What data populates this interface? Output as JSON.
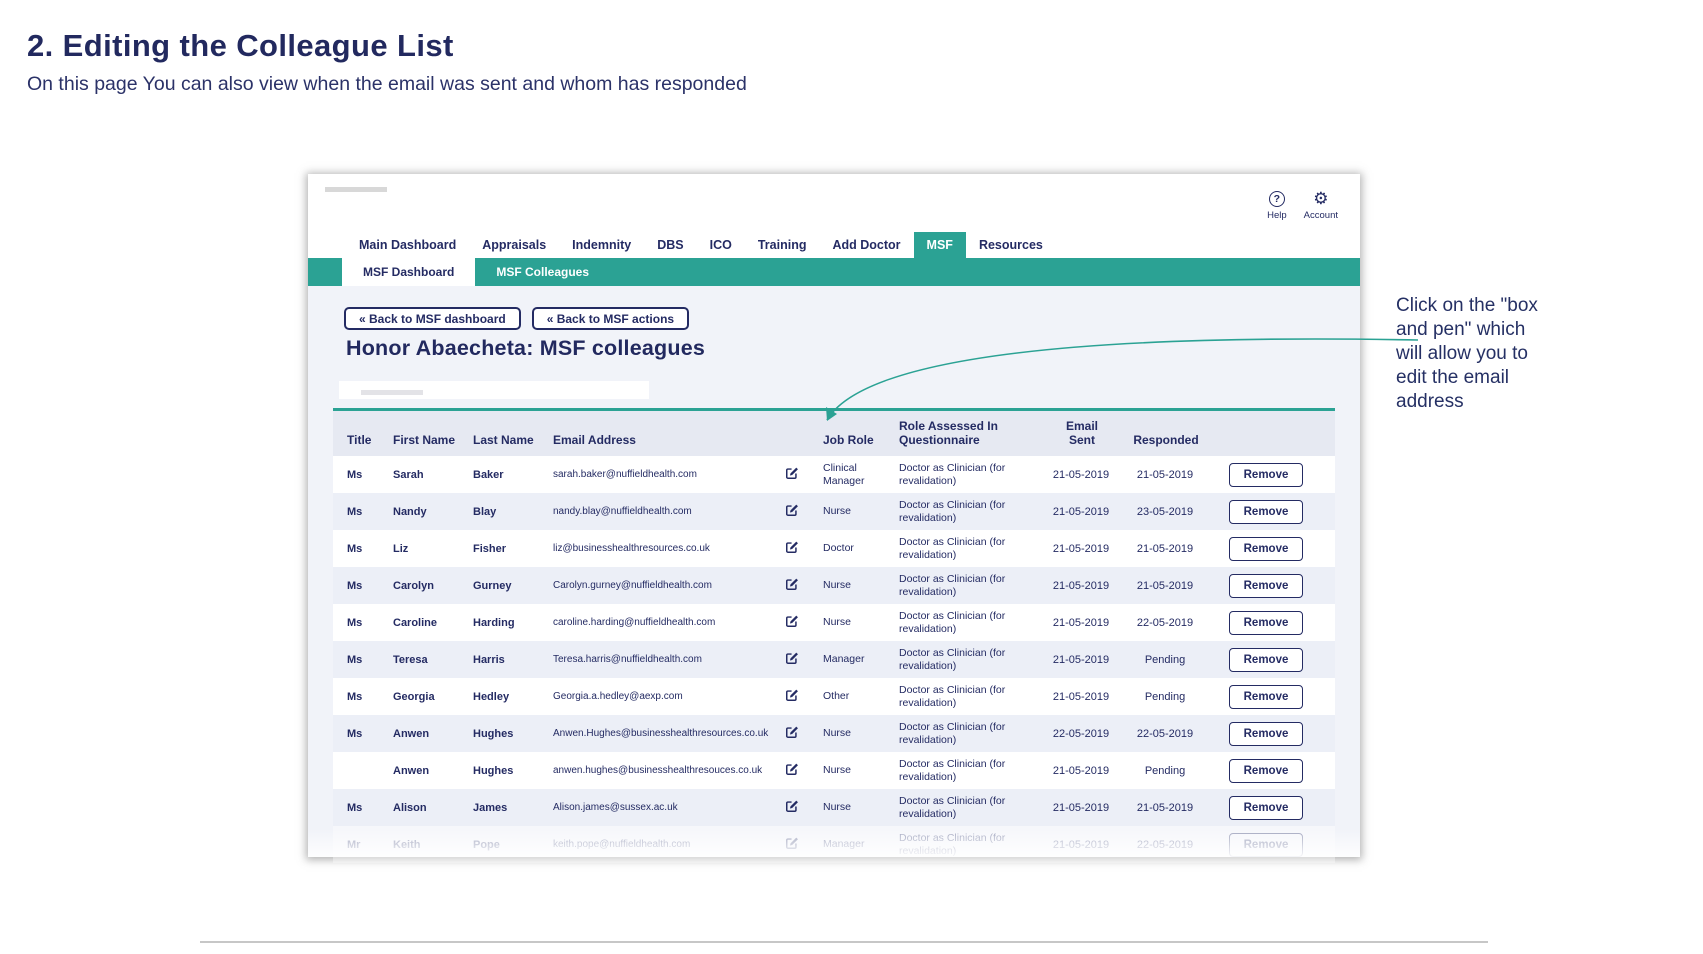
{
  "page": {
    "title": "2. Editing the Colleague List",
    "subtitle": "On this page You can also view when the email was sent and whom has responded"
  },
  "annotation": {
    "text": "Click on the \"box and pen\" which will allow you to edit the email address",
    "arrow_color": "#2ba294"
  },
  "colors": {
    "teal": "#2ba294",
    "navy": "#242b63",
    "stripe": "#eceff7",
    "header_bg": "#e6e9f2"
  },
  "app": {
    "utility": {
      "help_label": "Help",
      "help_icon_glyph": "?",
      "account_label": "Account",
      "account_icon_glyph": "⚙"
    },
    "nav_tabs": [
      {
        "label": "Main Dashboard",
        "active": false
      },
      {
        "label": "Appraisals",
        "active": false
      },
      {
        "label": "Indemnity",
        "active": false
      },
      {
        "label": "DBS",
        "active": false
      },
      {
        "label": "ICO",
        "active": false
      },
      {
        "label": "Training",
        "active": false
      },
      {
        "label": "Add Doctor",
        "active": false
      },
      {
        "label": "MSF",
        "active": true
      },
      {
        "label": "Resources",
        "active": false
      }
    ],
    "subnav_tabs": [
      {
        "label": "MSF Dashboard",
        "active": true
      },
      {
        "label": "MSF Colleagues",
        "active": false
      }
    ],
    "back_buttons": [
      {
        "label": "« Back to MSF dashboard"
      },
      {
        "label": "« Back to MSF actions"
      }
    ],
    "heading": "Honor Abaecheta: MSF colleagues",
    "table": {
      "headers": [
        {
          "label": "Title",
          "align": "left"
        },
        {
          "label": "First Name",
          "align": "left"
        },
        {
          "label": "Last Name",
          "align": "left"
        },
        {
          "label": "Email Address",
          "align": "left"
        },
        {
          "label": "",
          "align": "left"
        },
        {
          "label": "Job Role",
          "align": "left"
        },
        {
          "label": "Role Assessed In\nQuestionnaire",
          "align": "left"
        },
        {
          "label": "Email\nSent",
          "align": "center"
        },
        {
          "label": "Responded",
          "align": "center"
        },
        {
          "label": "",
          "align": "center"
        }
      ],
      "edit_icon": "edit-pen-square-icon",
      "remove_label": "Remove",
      "rows": [
        {
          "title": "Ms",
          "first": "Sarah",
          "last": "Baker",
          "email": "sarah.baker@nuffieldhealth.com",
          "job_role": "Clinical Manager",
          "role_assessed": "Doctor as Clinician (for revalidation)",
          "email_sent": "21-05-2019",
          "responded": "21-05-2019",
          "faded": false
        },
        {
          "title": "Ms",
          "first": "Nandy",
          "last": "Blay",
          "email": "nandy.blay@nuffieldhealth.com",
          "job_role": "Nurse",
          "role_assessed": "Doctor as Clinician (for revalidation)",
          "email_sent": "21-05-2019",
          "responded": "23-05-2019",
          "faded": false
        },
        {
          "title": "Ms",
          "first": "Liz",
          "last": "Fisher",
          "email": "liz@businesshealthresources.co.uk",
          "job_role": "Doctor",
          "role_assessed": "Doctor as Clinician (for revalidation)",
          "email_sent": "21-05-2019",
          "responded": "21-05-2019",
          "faded": false
        },
        {
          "title": "Ms",
          "first": "Carolyn",
          "last": "Gurney",
          "email": "Carolyn.gurney@nuffieldhealth.com",
          "job_role": "Nurse",
          "role_assessed": "Doctor as Clinician (for revalidation)",
          "email_sent": "21-05-2019",
          "responded": "21-05-2019",
          "faded": false
        },
        {
          "title": "Ms",
          "first": "Caroline",
          "last": "Harding",
          "email": "caroline.harding@nuffieldhealth.com",
          "job_role": "Nurse",
          "role_assessed": "Doctor as Clinician (for revalidation)",
          "email_sent": "21-05-2019",
          "responded": "22-05-2019",
          "faded": false
        },
        {
          "title": "Ms",
          "first": "Teresa",
          "last": "Harris",
          "email": "Teresa.harris@nuffieldhealth.com",
          "job_role": "Manager",
          "role_assessed": "Doctor as Clinician (for revalidation)",
          "email_sent": "21-05-2019",
          "responded": "Pending",
          "faded": false
        },
        {
          "title": "Ms",
          "first": "Georgia",
          "last": "Hedley",
          "email": "Georgia.a.hedley@aexp.com",
          "job_role": "Other",
          "role_assessed": "Doctor as Clinician (for revalidation)",
          "email_sent": "21-05-2019",
          "responded": "Pending",
          "faded": false
        },
        {
          "title": "Ms",
          "first": "Anwen",
          "last": "Hughes",
          "email": "Anwen.Hughes@businesshealthresources.co.uk",
          "job_role": "Nurse",
          "role_assessed": "Doctor as Clinician (for revalidation)",
          "email_sent": "22-05-2019",
          "responded": "22-05-2019",
          "faded": false
        },
        {
          "title": "",
          "first": "Anwen",
          "last": "Hughes",
          "email": "anwen.hughes@businesshealthresouces.co.uk",
          "job_role": "Nurse",
          "role_assessed": "Doctor as Clinician (for revalidation)",
          "email_sent": "21-05-2019",
          "responded": "Pending",
          "faded": false
        },
        {
          "title": "Ms",
          "first": "Alison",
          "last": "James",
          "email": "Alison.james@sussex.ac.uk",
          "job_role": "Nurse",
          "role_assessed": "Doctor as Clinician (for revalidation)",
          "email_sent": "21-05-2019",
          "responded": "21-05-2019",
          "faded": false
        },
        {
          "title": "Mr",
          "first": "Keith",
          "last": "Pope",
          "email": "keith.pope@nuffieldhealth.com",
          "job_role": "Manager",
          "role_assessed": "Doctor as Clinician (for revalidation)",
          "email_sent": "21-05-2019",
          "responded": "22-05-2019",
          "faded": true
        }
      ]
    }
  }
}
